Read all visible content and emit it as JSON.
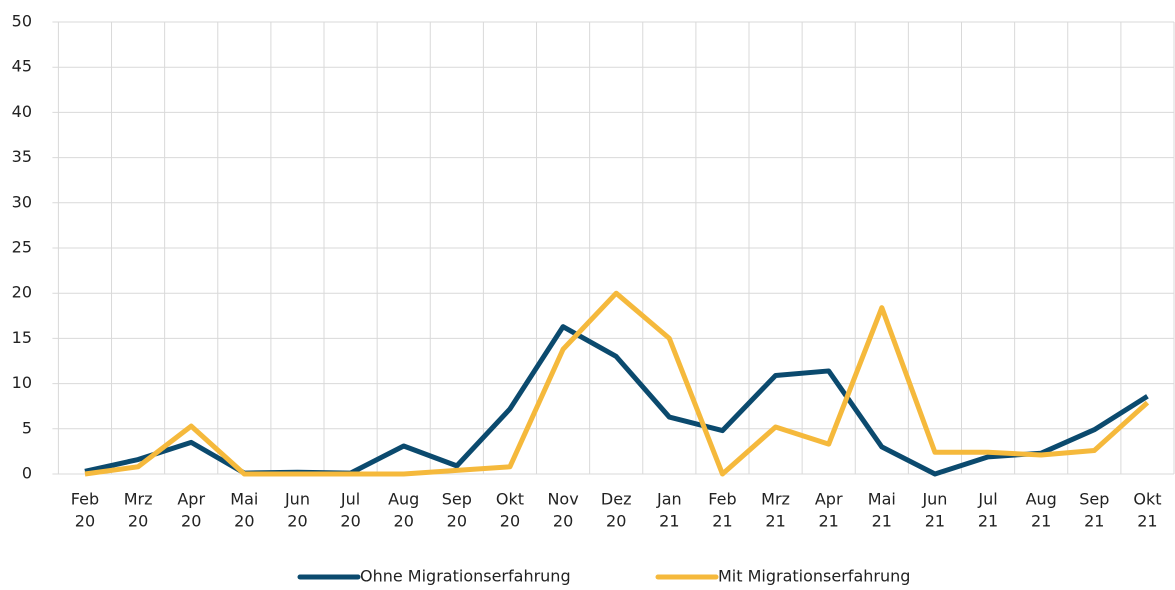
{
  "chart_data": {
    "type": "line",
    "categories": [
      [
        "Feb",
        "20"
      ],
      [
        "Mrz",
        "20"
      ],
      [
        "Apr",
        "20"
      ],
      [
        "Mai",
        "20"
      ],
      [
        "Jun",
        "20"
      ],
      [
        "Jul",
        "20"
      ],
      [
        "Aug",
        "20"
      ],
      [
        "Sep",
        "20"
      ],
      [
        "Okt",
        "20"
      ],
      [
        "Nov",
        "20"
      ],
      [
        "Dez",
        "20"
      ],
      [
        "Jan",
        "21"
      ],
      [
        "Feb",
        "21"
      ],
      [
        "Mrz",
        "21"
      ],
      [
        "Apr",
        "21"
      ],
      [
        "Mai",
        "21"
      ],
      [
        "Jun",
        "21"
      ],
      [
        "Jul",
        "21"
      ],
      [
        "Aug",
        "21"
      ],
      [
        "Sep",
        "21"
      ],
      [
        "Okt",
        "21"
      ]
    ],
    "series": [
      {
        "name": "Ohne Migrationserfahrung",
        "color": "#0b4a6e",
        "values": [
          0.3,
          1.6,
          3.5,
          0.1,
          0.2,
          0.1,
          3.1,
          0.9,
          7.2,
          16.3,
          13,
          6.3,
          4.8,
          10.9,
          11.4,
          3,
          0,
          1.9,
          2.3,
          4.9,
          8.6
        ]
      },
      {
        "name": "Mit Migrationserfahrung",
        "color": "#f5b93c",
        "values": [
          0,
          0.8,
          5.3,
          0,
          0,
          0,
          0,
          0.4,
          0.8,
          13.8,
          20,
          15,
          0,
          5.2,
          3.3,
          18.4,
          2.4,
          2.4,
          2.1,
          2.6,
          7.9
        ]
      }
    ],
    "ylim": [
      0,
      50
    ],
    "yticks": [
      0,
      5,
      10,
      15,
      20,
      25,
      30,
      35,
      40,
      45,
      50
    ],
    "grid": true,
    "legend": "bottom"
  }
}
